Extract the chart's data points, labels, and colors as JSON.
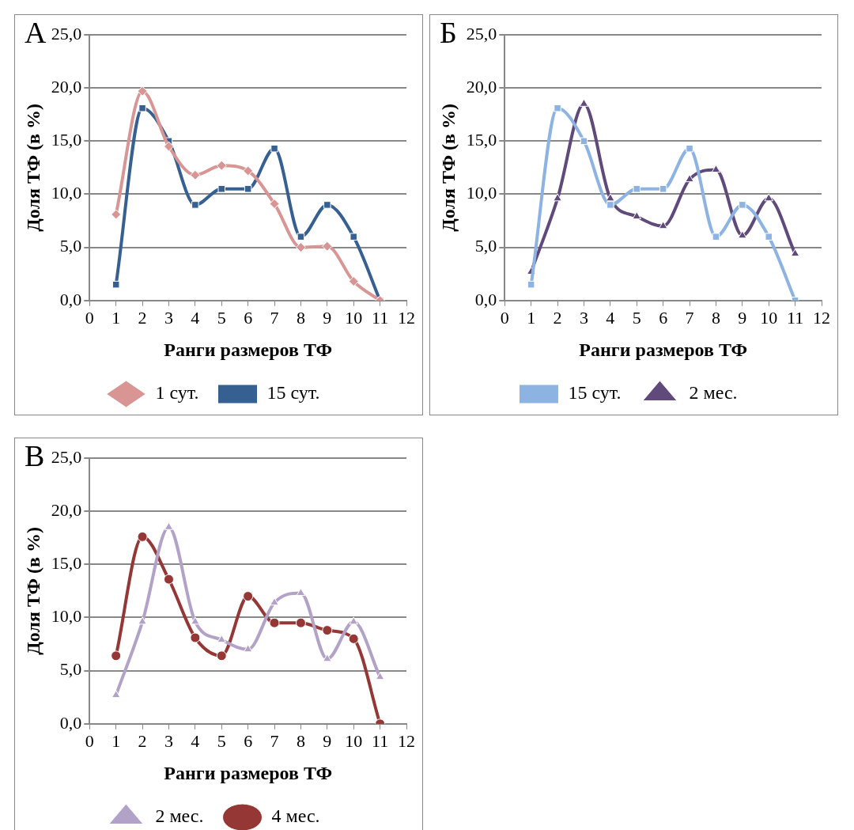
{
  "chart_data": [
    {
      "type": "line",
      "title": "А",
      "xlabel": "Ранги размеров ТФ",
      "ylabel": "Доля ТФ (в %)",
      "x": [
        1,
        2,
        3,
        4,
        5,
        6,
        7,
        8,
        9,
        10,
        11
      ],
      "xlim": [
        0,
        12
      ],
      "xticks": [
        0,
        1,
        2,
        3,
        4,
        5,
        6,
        7,
        8,
        9,
        10,
        11,
        12
      ],
      "ylim": [
        0,
        25
      ],
      "yticks": [
        {
          "value": 0,
          "label": "0,0"
        },
        {
          "value": 5,
          "label": "5,0"
        },
        {
          "value": 10,
          "label": "10,0"
        },
        {
          "value": 15,
          "label": "15,0"
        },
        {
          "value": 20,
          "label": "20,0"
        },
        {
          "value": 25,
          "label": "25,0"
        }
      ],
      "grid": "y",
      "legend": "bottom",
      "series": [
        {
          "name": "1 сут.",
          "color": "#d99594",
          "marker": "diamond",
          "values": [
            8.1,
            19.7,
            14.5,
            11.8,
            12.7,
            12.2,
            9.1,
            5.0,
            5.1,
            1.8,
            0.0
          ]
        },
        {
          "name": "15 сут.",
          "color": "#376092",
          "marker": "square",
          "values": [
            1.5,
            18.1,
            15.0,
            9.0,
            10.5,
            10.5,
            14.3,
            6.0,
            9.0,
            6.0,
            0.0
          ]
        }
      ]
    },
    {
      "type": "line",
      "title": "Б",
      "xlabel": "Ранги размеров ТФ",
      "ylabel": "Доля ТФ (в %)",
      "x": [
        1,
        2,
        3,
        4,
        5,
        6,
        7,
        8,
        9,
        10,
        11
      ],
      "xlim": [
        0,
        12
      ],
      "xticks": [
        0,
        1,
        2,
        3,
        4,
        5,
        6,
        7,
        8,
        9,
        10,
        11,
        12
      ],
      "ylim": [
        0,
        25
      ],
      "yticks": [
        {
          "value": 0,
          "label": "0,0"
        },
        {
          "value": 5,
          "label": "5,0"
        },
        {
          "value": 10,
          "label": "10,0"
        },
        {
          "value": 15,
          "label": "15,0"
        },
        {
          "value": 20,
          "label": "20,0"
        },
        {
          "value": 25,
          "label": "25,0"
        }
      ],
      "grid": "y",
      "legend": "bottom",
      "series": [
        {
          "name": "15 сут.",
          "color": "#8db3e2",
          "marker": "square",
          "values": [
            1.5,
            18.1,
            15.0,
            9.0,
            10.5,
            10.5,
            14.3,
            6.0,
            9.0,
            6.0,
            0.0
          ]
        },
        {
          "name": "2 мес.",
          "color": "#604a7b",
          "marker": "triangle",
          "values": [
            2.7,
            9.6,
            18.5,
            9.6,
            7.9,
            7.0,
            11.4,
            12.3,
            6.1,
            9.6,
            4.4
          ]
        }
      ]
    },
    {
      "type": "line",
      "title": "В",
      "xlabel": "Ранги размеров ТФ",
      "ylabel": "Доля ТФ (в %)",
      "x": [
        1,
        2,
        3,
        4,
        5,
        6,
        7,
        8,
        9,
        10,
        11
      ],
      "xlim": [
        0,
        12
      ],
      "xticks": [
        0,
        1,
        2,
        3,
        4,
        5,
        6,
        7,
        8,
        9,
        10,
        11,
        12
      ],
      "ylim": [
        0,
        25
      ],
      "yticks": [
        {
          "value": 0,
          "label": "0,0"
        },
        {
          "value": 5,
          "label": "5,0"
        },
        {
          "value": 10,
          "label": "10,0"
        },
        {
          "value": 15,
          "label": "15,0"
        },
        {
          "value": 20,
          "label": "20,0"
        },
        {
          "value": 25,
          "label": "25,0"
        }
      ],
      "grid": "y",
      "legend": "bottom",
      "series": [
        {
          "name": "2 мес.",
          "color": "#b3a2c7",
          "marker": "triangle",
          "values": [
            2.7,
            9.6,
            18.5,
            9.6,
            7.9,
            7.0,
            11.4,
            12.3,
            6.1,
            9.6,
            4.4
          ]
        },
        {
          "name": "4 мес.",
          "color": "#953735",
          "marker": "circle",
          "values": [
            6.4,
            17.6,
            13.6,
            8.1,
            6.4,
            12.0,
            9.5,
            9.5,
            8.8,
            8.0,
            0.0
          ]
        }
      ]
    }
  ]
}
